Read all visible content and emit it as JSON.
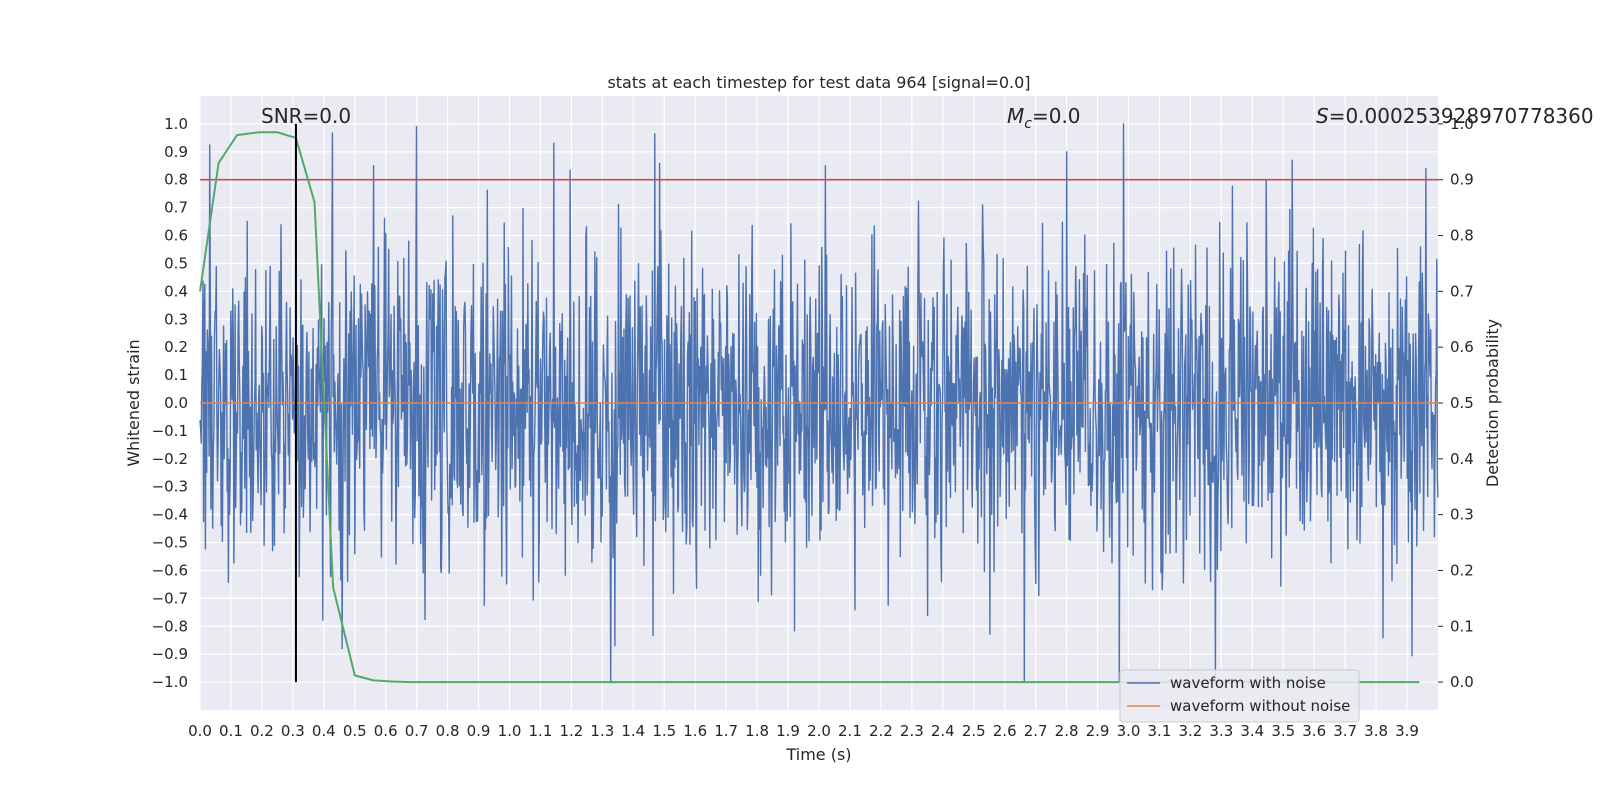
{
  "chart_data": {
    "type": "line",
    "title": "stats at each timestep for test data 964 [signal=0.0]",
    "xlabel": "Time (s)",
    "ylabel": "Whitened strain",
    "y2label": "Detection probability",
    "xlim": [
      0.0,
      4.0
    ],
    "ylim": [
      -1.1,
      1.1
    ],
    "y2lim": [
      -0.05,
      1.05
    ],
    "x_ticks": [
      "0.0",
      "0.1",
      "0.2",
      "0.3",
      "0.4",
      "0.5",
      "0.6",
      "0.7",
      "0.8",
      "0.9",
      "1.0",
      "1.1",
      "1.2",
      "1.3",
      "1.4",
      "1.5",
      "1.6",
      "1.7",
      "1.8",
      "1.9",
      "2.0",
      "2.1",
      "2.2",
      "2.3",
      "2.4",
      "2.5",
      "2.6",
      "2.7",
      "2.8",
      "2.9",
      "3.0",
      "3.1",
      "3.2",
      "3.3",
      "3.4",
      "3.5",
      "3.6",
      "3.7",
      "3.8",
      "3.9"
    ],
    "y_ticks": [
      "1.0",
      "0.9",
      "0.8",
      "0.7",
      "0.6",
      "0.5",
      "0.4",
      "0.3",
      "0.2",
      "0.1",
      "0.0",
      "−0.1",
      "−0.2",
      "−0.3",
      "−0.4",
      "−0.5",
      "−0.6",
      "−0.7",
      "−0.8",
      "−0.9",
      "−1.0"
    ],
    "y2_ticks": [
      "1.0",
      "0.9",
      "0.8",
      "0.7",
      "0.6",
      "0.5",
      "0.4",
      "0.3",
      "0.2",
      "0.1",
      "0.0"
    ],
    "grid": true,
    "legend_position": "bottom-right",
    "annotations": {
      "snr": "SNR=0.0",
      "mc_symbol": "M",
      "mc_sub": "c",
      "mc_value": "=0.0",
      "s_symbol": "S",
      "s_value": "=0.000253928970778360"
    },
    "series": [
      {
        "name": "waveform with noise",
        "color": "#4c72b0",
        "kind": "noise",
        "x_range": [
          0.0,
          4.0
        ],
        "sample_count": 2048,
        "amplitude_range": [
          -1.0,
          1.0
        ],
        "notable_peaks": [
          {
            "x": 0.7,
            "y": 0.99
          },
          {
            "x": 2.8,
            "y": 0.9
          },
          {
            "x": 3.53,
            "y": 0.87
          },
          {
            "x": 3.96,
            "y": 0.84
          },
          {
            "x": 2.02,
            "y": 0.85
          },
          {
            "x": 0.56,
            "y": 0.85
          },
          {
            "x": 2.97,
            "y": -1.0
          },
          {
            "x": 3.28,
            "y": -1.0
          },
          {
            "x": 0.46,
            "y": -0.88
          },
          {
            "x": 1.34,
            "y": -0.87
          }
        ]
      },
      {
        "name": "waveform without noise",
        "color": "#dd8452",
        "x": [
          0.0,
          4.0
        ],
        "y": [
          0.0,
          0.0
        ]
      },
      {
        "name": "",
        "color": "#55a868",
        "axis": "right",
        "x": [
          0.0,
          0.06,
          0.12,
          0.19,
          0.25,
          0.31,
          0.37,
          0.43,
          0.5,
          0.56,
          0.62,
          0.68,
          1.0,
          2.0,
          3.0,
          3.94
        ],
        "y": [
          0.7,
          0.93,
          0.98,
          0.985,
          0.985,
          0.975,
          0.86,
          0.17,
          0.012,
          0.003,
          0.001,
          0.0,
          0.0,
          0.0,
          0.0,
          0.0
        ]
      },
      {
        "name": "",
        "color": "#c44e52",
        "axis": "right",
        "kind": "hline",
        "y": 0.9
      },
      {
        "name": "",
        "color": "#000000",
        "kind": "vline",
        "x": 0.31,
        "y": [
          -1.0,
          1.0
        ]
      }
    ]
  }
}
